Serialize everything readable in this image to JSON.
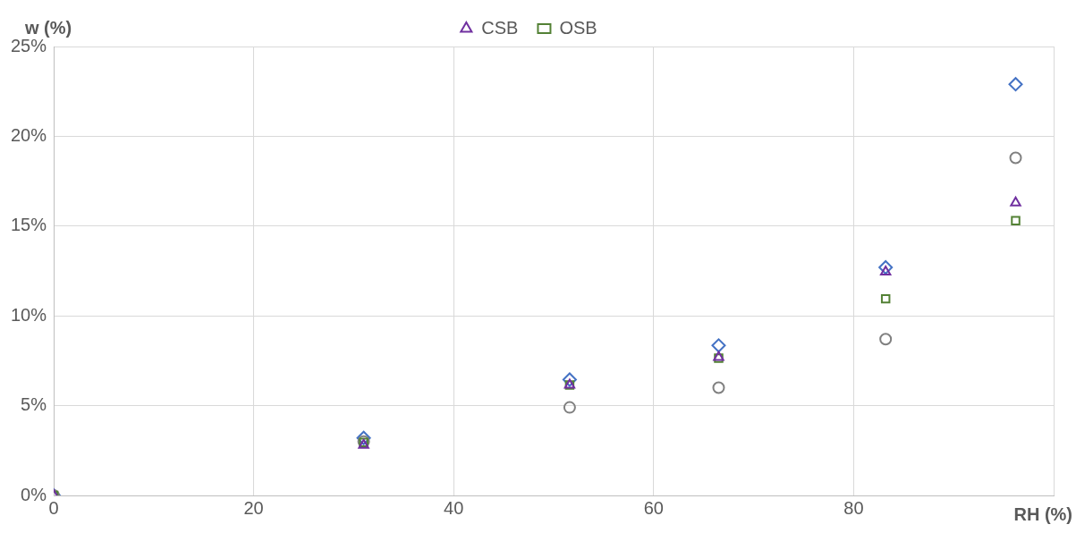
{
  "chart_data": {
    "type": "scatter",
    "ylabel": "w (%)",
    "xlabel": "RH (%)",
    "xlim": [
      0,
      100
    ],
    "xticks": [
      0,
      20,
      40,
      60,
      80,
      {
        "value": 100,
        "label": null
      }
    ],
    "ylim": [
      0,
      25
    ],
    "yticks": [
      {
        "value": 0,
        "label": "0%"
      },
      {
        "value": 5,
        "label": "5%"
      },
      {
        "value": 10,
        "label": "10%"
      },
      {
        "value": 15,
        "label": "15%"
      },
      {
        "value": 20,
        "label": "20%"
      },
      {
        "value": 25,
        "label": "25%"
      }
    ],
    "grid": true,
    "legend": "top",
    "series": [
      {
        "name": "CSB",
        "color": "#7030a0",
        "marker": "triangle",
        "x": [
          0,
          31,
          51.6,
          66.5,
          83.2,
          96.2
        ],
        "values": [
          0,
          2.8,
          6.15,
          7.7,
          12.45,
          16.3
        ]
      },
      {
        "name": "OSB",
        "color": "#538135",
        "marker": "square",
        "x": [
          0,
          31,
          51.6,
          66.5,
          83.2,
          96.2
        ],
        "values": [
          0,
          2.95,
          6.15,
          7.65,
          10.95,
          15.3
        ]
      },
      {
        "color": "#808080",
        "marker": "circle",
        "x": [
          0,
          31,
          51.6,
          66.5,
          83.2,
          96.2
        ],
        "values": [
          0,
          3.0,
          4.9,
          6.0,
          8.7,
          18.8
        ]
      },
      {
        "color": "#4472c4",
        "marker": "diamond",
        "x": [
          0,
          31,
          51.6,
          66.5,
          83.2,
          96.2
        ],
        "values": [
          0,
          3.2,
          6.45,
          8.35,
          12.7,
          22.9
        ]
      }
    ]
  }
}
